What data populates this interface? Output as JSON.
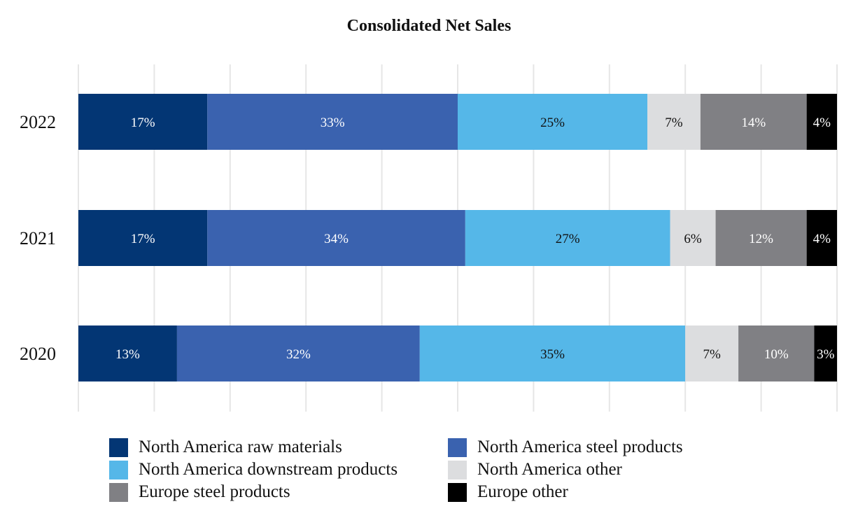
{
  "chart_data": {
    "type": "bar",
    "orientation": "horizontal",
    "stacked": true,
    "title": "Consolidated Net Sales",
    "xlabel": "",
    "ylabel": "",
    "xlim": [
      0,
      100
    ],
    "grid": true,
    "legend_position": "bottom",
    "categories": [
      "2022",
      "2021",
      "2020"
    ],
    "series": [
      {
        "name": "North America raw materials",
        "color": "#033674",
        "label_color": "#ffffff",
        "values": [
          17,
          17,
          13
        ],
        "labels": [
          "17%",
          "17%",
          "13%"
        ]
      },
      {
        "name": "North America steel products",
        "color": "#3a62af",
        "label_color": "#ffffff",
        "values": [
          33,
          34,
          32
        ],
        "labels": [
          "33%",
          "34%",
          "32%"
        ]
      },
      {
        "name": "North America downstream products",
        "color": "#55b7e8",
        "label_color": "#111111",
        "values": [
          25,
          27,
          35
        ],
        "labels": [
          "25%",
          "27%",
          "35%"
        ]
      },
      {
        "name": "North America other",
        "color": "#dcdddf",
        "label_color": "#111111",
        "values": [
          7,
          6,
          7
        ],
        "labels": [
          "7%",
          "6%",
          "7%"
        ]
      },
      {
        "name": "Europe steel products",
        "color": "#808084",
        "label_color": "#ffffff",
        "values": [
          14,
          12,
          10
        ],
        "labels": [
          "14%",
          "12%",
          "10%"
        ]
      },
      {
        "name": "Europe other",
        "color": "#000000",
        "label_color": "#ffffff",
        "values": [
          4,
          4,
          3
        ],
        "labels": [
          "4%",
          "4%",
          "3%"
        ]
      }
    ]
  }
}
